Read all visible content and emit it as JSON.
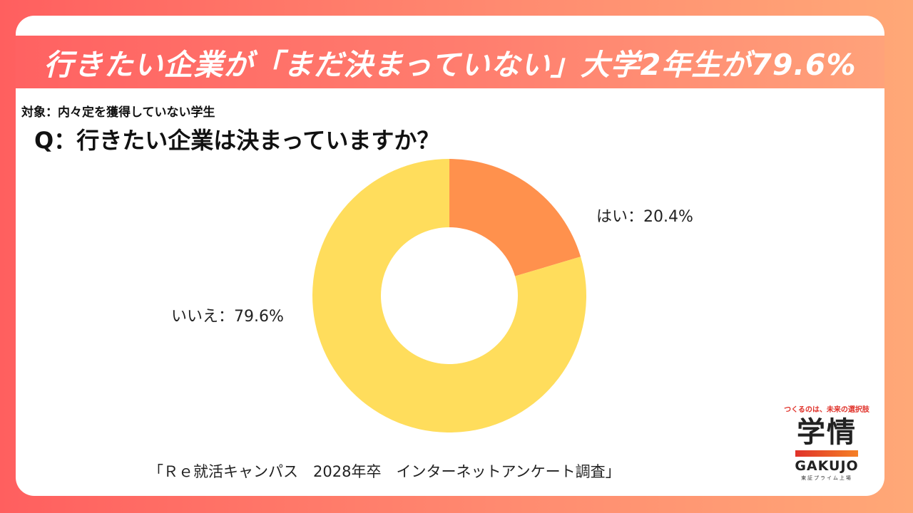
{
  "header": {
    "title": "行きたい企業が「まだ決まっていない」大学2年生が79.6%"
  },
  "subject": "対象：内々定を獲得していない学生",
  "question": "Q：行きたい企業は決まっていますか？",
  "chart_data": {
    "type": "pie",
    "donut": true,
    "categories": [
      "はい",
      "いいえ"
    ],
    "values": [
      20.4,
      79.6
    ],
    "unit": "%",
    "data_labels": [
      "はい：20.4%",
      "いいえ：79.6%"
    ],
    "colors": [
      "#ff914d",
      "#ffdd5c"
    ]
  },
  "source": "「Ｒｅ就活キャンパス　2028年卒　インターネットアンケート調査」",
  "logo": {
    "tagline": "つくるのは、未来の選択肢",
    "mark": "学情",
    "name": "GAKUJO",
    "sub": "東証プライム上場"
  },
  "colors": {
    "background_left": "#ff5f5f",
    "background_right": "#ffa877",
    "yes_slice": "#ff914d",
    "no_slice": "#ffdd5c"
  }
}
